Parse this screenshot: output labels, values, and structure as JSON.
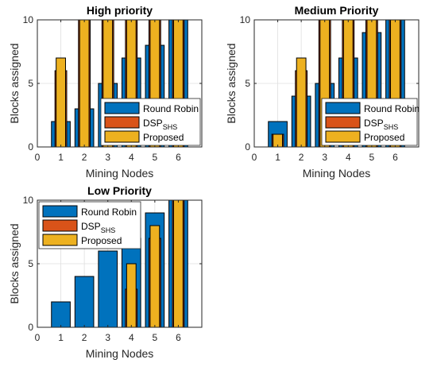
{
  "colors": {
    "round_robin": "#0072BD",
    "dsp_shs": "#D95319",
    "proposed": "#EDB120"
  },
  "chart_data": [
    {
      "type": "bar",
      "title": "High priority",
      "xlabel": "Mining Nodes",
      "ylabel": "Blocks assigned",
      "xlim": [
        0,
        7
      ],
      "ylim": [
        0,
        10
      ],
      "xticks": [
        "0",
        "1",
        "2",
        "3",
        "4",
        "5",
        "6"
      ],
      "yticks": [
        "0",
        "5",
        "10"
      ],
      "categories": [
        1,
        2,
        3,
        4,
        5,
        6
      ],
      "grid": true,
      "legend_position": "bottom-right",
      "series": [
        {
          "name": "Round Robin",
          "name_base": "Round Robin",
          "name_sub": "",
          "values": [
            2,
            3,
            5,
            7,
            8,
            10
          ]
        },
        {
          "name": "DSPSHS",
          "name_base": "DSP",
          "name_sub": "SHS",
          "values": [
            6,
            10,
            10,
            10,
            10,
            10
          ]
        },
        {
          "name": "Proposed",
          "name_base": "Proposed",
          "name_sub": "",
          "values": [
            7,
            10,
            10,
            10,
            10,
            10
          ]
        }
      ]
    },
    {
      "type": "bar",
      "title": "Medium Priority",
      "xlabel": "Mining Nodes",
      "ylabel": "Blocks assigned",
      "xlim": [
        0,
        7
      ],
      "ylim": [
        0,
        10
      ],
      "xticks": [
        "0",
        "1",
        "2",
        "3",
        "4",
        "5",
        "6"
      ],
      "yticks": [
        "0",
        "5",
        "10"
      ],
      "categories": [
        1,
        2,
        3,
        4,
        5,
        6
      ],
      "grid": true,
      "legend_position": "bottom-right",
      "series": [
        {
          "name": "Round Robin",
          "name_base": "Round Robin",
          "name_sub": "",
          "values": [
            2,
            4,
            5,
            7,
            9,
            10
          ]
        },
        {
          "name": "DSPSHS",
          "name_base": "DSP",
          "name_sub": "SHS",
          "values": [
            1,
            6,
            10,
            10,
            10,
            10
          ]
        },
        {
          "name": "Proposed",
          "name_base": "Proposed",
          "name_sub": "",
          "values": [
            1,
            7,
            10,
            10,
            10,
            10
          ]
        }
      ]
    },
    {
      "type": "bar",
      "title": "Low Priority",
      "xlabel": "Mining Nodes",
      "ylabel": "Blocks assigned",
      "xlim": [
        0,
        7
      ],
      "ylim": [
        0,
        10
      ],
      "xticks": [
        "0",
        "1",
        "2",
        "3",
        "4",
        "5",
        "6"
      ],
      "yticks": [
        "0",
        "5",
        "10"
      ],
      "categories": [
        1,
        2,
        3,
        4,
        5,
        6
      ],
      "grid": true,
      "legend_position": "top-left",
      "series": [
        {
          "name": "Round Robin",
          "name_base": "Round Robin",
          "name_sub": "",
          "values": [
            2,
            4,
            6,
            7,
            9,
            10
          ]
        },
        {
          "name": "DSPSHS",
          "name_base": "DSP",
          "name_sub": "SHS",
          "values": [
            0,
            0,
            0,
            3,
            7,
            10
          ]
        },
        {
          "name": "Proposed",
          "name_base": "Proposed",
          "name_sub": "",
          "values": [
            0,
            0,
            0,
            5,
            8,
            10
          ]
        }
      ]
    }
  ]
}
